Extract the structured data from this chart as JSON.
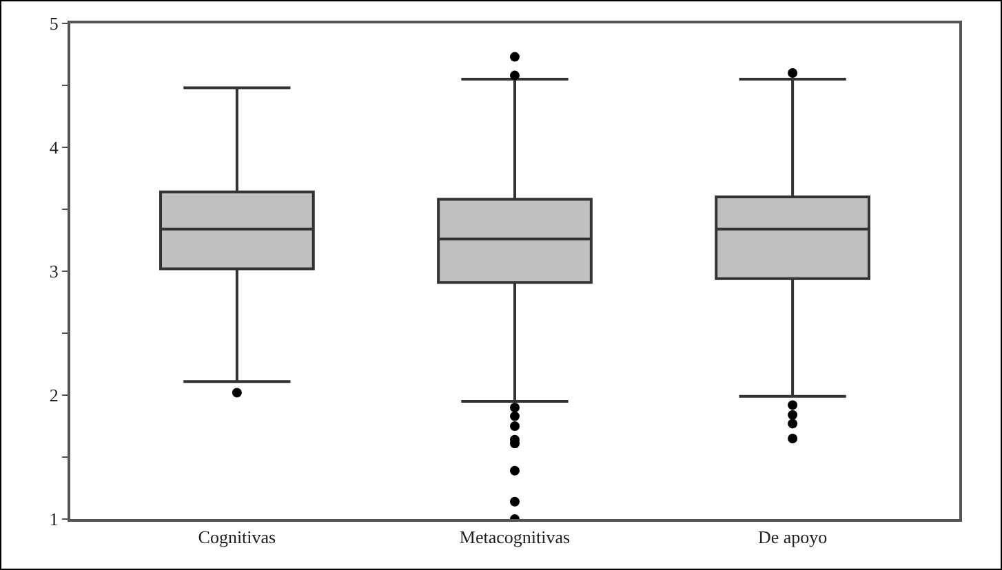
{
  "chart_data": {
    "type": "box",
    "categories": [
      "Cognitivas",
      "Metacognitivas",
      "De apoyo"
    ],
    "color": "#c0c0c0",
    "boxes": [
      {
        "low": 2.11,
        "q1": 3.02,
        "median": 3.34,
        "q3": 3.64,
        "high": 4.48,
        "outliers": [
          2.02
        ]
      },
      {
        "low": 1.95,
        "q1": 2.91,
        "median": 3.26,
        "q3": 3.58,
        "high": 4.55,
        "outliers": [
          4.73,
          4.58,
          1.9,
          1.83,
          1.75,
          1.64,
          1.61,
          1.39,
          1.14,
          1.0
        ]
      },
      {
        "low": 1.99,
        "q1": 2.94,
        "median": 3.34,
        "q3": 3.6,
        "high": 4.55,
        "outliers": [
          4.6,
          1.92,
          1.84,
          1.77,
          1.65
        ]
      }
    ],
    "ylim": [
      1,
      5
    ],
    "yticks": [
      1,
      {
        "value": 1.5,
        "label": null
      },
      2,
      {
        "value": 2.5,
        "label": null
      },
      3,
      {
        "value": 3.5,
        "label": null
      },
      4,
      {
        "value": 4.5,
        "label": null
      },
      5
    ],
    "grid": false
  }
}
